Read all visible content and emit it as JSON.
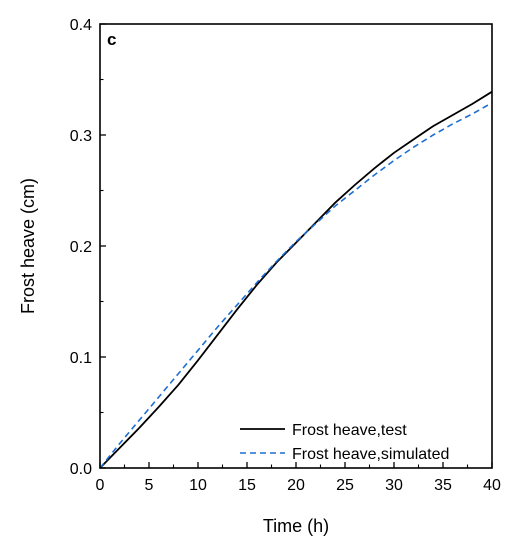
{
  "chart_data": {
    "type": "line",
    "panel_label": "c",
    "xlabel": "Time (h)",
    "ylabel": "Frost heave (cm)",
    "xlim": [
      0,
      40
    ],
    "ylim": [
      0,
      0.4
    ],
    "x_ticks": [
      0,
      5,
      10,
      15,
      20,
      25,
      30,
      35,
      40
    ],
    "y_ticks": [
      0.0,
      0.1,
      0.2,
      0.3,
      0.4
    ],
    "x_tick_labels": [
      "0",
      "5",
      "10",
      "15",
      "20",
      "25",
      "30",
      "35",
      "40"
    ],
    "y_tick_labels": [
      "0.0",
      "0.1",
      "0.2",
      "0.3",
      "0.4"
    ],
    "grid": false,
    "legend_position": "bottom-right",
    "series": [
      {
        "name": "Frost heave,test",
        "style": "solid",
        "color": "#000000",
        "x": [
          0,
          2,
          4,
          6,
          8,
          10,
          12,
          14,
          16,
          18,
          20,
          22,
          24,
          26,
          28,
          30,
          32,
          34,
          36,
          38,
          40
        ],
        "y": [
          0,
          0.018,
          0.036,
          0.055,
          0.075,
          0.097,
          0.12,
          0.143,
          0.165,
          0.185,
          0.203,
          0.221,
          0.239,
          0.255,
          0.27,
          0.284,
          0.296,
          0.308,
          0.318,
          0.328,
          0.339
        ]
      },
      {
        "name": "Frost heave,simulated",
        "style": "dashed",
        "color": "#1f6fd1",
        "x": [
          0,
          2,
          4,
          6,
          8,
          10,
          12,
          14,
          16,
          18,
          20,
          22,
          24,
          26,
          28,
          30,
          32,
          34,
          36,
          38,
          40
        ],
        "y": [
          0,
          0.022,
          0.043,
          0.064,
          0.085,
          0.106,
          0.127,
          0.147,
          0.167,
          0.186,
          0.204,
          0.22,
          0.236,
          0.25,
          0.264,
          0.277,
          0.289,
          0.3,
          0.31,
          0.319,
          0.329
        ]
      }
    ]
  }
}
